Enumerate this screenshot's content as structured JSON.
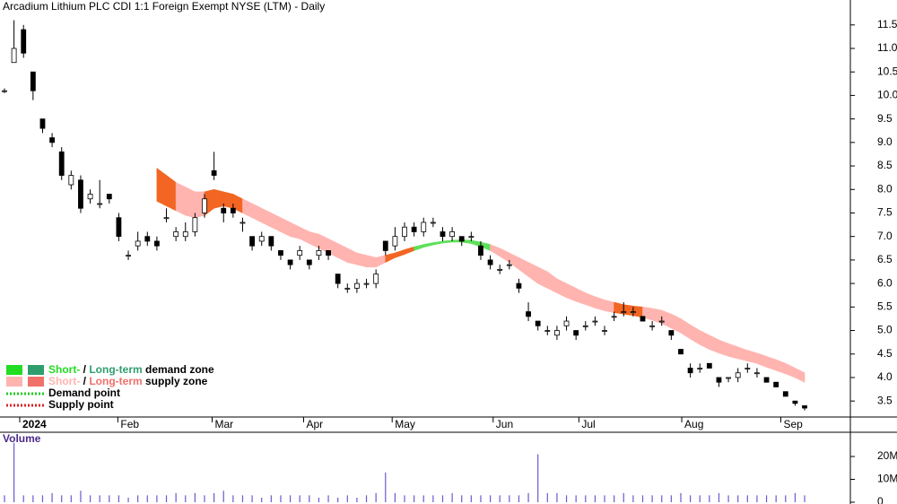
{
  "chart_data": {
    "type": "candlestick",
    "title": "Arcadium Lithium PLC CDI 1:1 Foreign Exempt NYSE (LTM) - Daily",
    "ylim": [
      3.16,
      12.03
    ],
    "yticks": [
      3.5,
      {
        "value": 4,
        "label": "4.0"
      },
      4.5,
      {
        "value": 5,
        "label": "5.0"
      },
      5.5,
      {
        "value": 6,
        "label": "6.0"
      },
      6.5,
      {
        "value": 7,
        "label": "7.0"
      },
      7.5,
      {
        "value": 8,
        "label": "8.0"
      },
      8.5,
      {
        "value": 9,
        "label": "9.0"
      },
      9.5,
      {
        "value": 10,
        "label": "10.0"
      },
      10.5,
      {
        "value": 11,
        "label": "11.0"
      },
      11.5
    ],
    "xlim": [
      -0.47,
      88.8
    ],
    "xticks": [
      {
        "value": 1.6,
        "label": "2024"
      },
      {
        "value": 11.9,
        "label": "Feb"
      },
      {
        "value": 21.8,
        "label": "Mar"
      },
      {
        "value": 31.4,
        "label": "Apr"
      },
      {
        "value": 40.7,
        "label": "May"
      },
      {
        "value": 51.3,
        "label": "Jun"
      },
      {
        "value": 60.3,
        "label": "Jul"
      },
      {
        "value": 71.1,
        "label": "Aug"
      },
      {
        "value": 81.5,
        "label": "Sep"
      }
    ],
    "ohlc": [
      [
        10.1,
        10.15,
        10.05,
        10.1
      ],
      [
        10.7,
        11.6,
        10.7,
        11.0
      ],
      [
        11.4,
        11.5,
        10.8,
        10.9
      ],
      [
        10.5,
        10.5,
        9.9,
        10.1
      ],
      [
        9.5,
        9.5,
        9.2,
        9.3
      ],
      [
        9.1,
        9.2,
        8.9,
        9.0
      ],
      [
        8.8,
        8.9,
        8.2,
        8.3
      ],
      [
        8.1,
        8.4,
        8.0,
        8.3
      ],
      [
        8.2,
        8.3,
        7.5,
        7.6
      ],
      [
        7.8,
        8.0,
        7.7,
        7.9
      ],
      [
        7.7,
        8.2,
        7.6,
        7.7
      ],
      [
        7.9,
        7.9,
        7.7,
        7.8
      ],
      [
        7.4,
        7.5,
        6.9,
        7.0
      ],
      [
        6.6,
        6.7,
        6.5,
        6.6
      ],
      [
        6.8,
        7.1,
        6.7,
        6.9
      ],
      [
        7.0,
        7.1,
        6.8,
        6.9
      ],
      [
        6.9,
        7.0,
        6.7,
        6.8
      ],
      [
        7.4,
        7.6,
        7.3,
        7.4
      ],
      [
        7.0,
        7.2,
        6.9,
        7.1
      ],
      [
        7.0,
        7.3,
        6.9,
        7.1
      ],
      [
        7.1,
        7.5,
        7.0,
        7.4
      ],
      [
        7.5,
        7.9,
        7.4,
        7.8
      ],
      [
        8.4,
        8.8,
        8.2,
        8.3
      ],
      [
        7.6,
        7.7,
        7.3,
        7.5
      ],
      [
        7.6,
        7.7,
        7.4,
        7.5
      ],
      [
        7.3,
        7.4,
        7.1,
        7.3
      ],
      [
        7.0,
        7.0,
        6.7,
        6.8
      ],
      [
        6.9,
        7.1,
        6.8,
        7.0
      ],
      [
        7.0,
        7.0,
        6.7,
        6.8
      ],
      [
        6.7,
        6.7,
        6.5,
        6.6
      ],
      [
        6.5,
        6.5,
        6.3,
        6.4
      ],
      [
        6.6,
        6.8,
        6.5,
        6.7
      ],
      [
        6.5,
        6.5,
        6.3,
        6.4
      ],
      [
        6.6,
        6.8,
        6.5,
        6.7
      ],
      [
        6.7,
        6.7,
        6.5,
        6.6
      ],
      [
        6.2,
        6.2,
        5.9,
        6.0
      ],
      [
        5.9,
        6.0,
        5.8,
        5.9
      ],
      [
        5.9,
        6.1,
        5.8,
        6.0
      ],
      [
        6.0,
        6.1,
        5.9,
        6.0
      ],
      [
        6.0,
        6.3,
        5.9,
        6.2
      ],
      [
        6.9,
        6.9,
        6.6,
        6.7
      ],
      [
        6.8,
        7.2,
        6.7,
        7.0
      ],
      [
        7.0,
        7.3,
        6.9,
        7.2
      ],
      [
        7.2,
        7.3,
        7.0,
        7.1
      ],
      [
        7.1,
        7.4,
        7.0,
        7.3
      ],
      [
        7.3,
        7.4,
        7.2,
        7.3
      ],
      [
        7.1,
        7.2,
        6.9,
        7.0
      ],
      [
        7.0,
        7.2,
        6.9,
        7.1
      ],
      [
        7.0,
        7.0,
        6.8,
        6.9
      ],
      [
        7.0,
        7.1,
        6.9,
        7.0
      ],
      [
        6.8,
        6.9,
        6.5,
        6.6
      ],
      [
        6.5,
        6.6,
        6.3,
        6.4
      ],
      [
        6.3,
        6.4,
        6.2,
        6.3
      ],
      [
        6.4,
        6.5,
        6.3,
        6.4
      ],
      [
        6.0,
        6.1,
        5.8,
        5.9
      ],
      [
        5.4,
        5.6,
        5.2,
        5.3
      ],
      [
        5.2,
        5.2,
        5.0,
        5.1
      ],
      [
        5.0,
        5.1,
        4.9,
        5.0
      ],
      [
        4.9,
        5.1,
        4.8,
        5.0
      ],
      [
        5.1,
        5.3,
        5.0,
        5.2
      ],
      [
        5.0,
        5.0,
        4.8,
        4.9
      ],
      [
        5.1,
        5.2,
        5.0,
        5.1
      ],
      [
        5.2,
        5.3,
        5.1,
        5.2
      ],
      [
        5.0,
        5.1,
        4.9,
        5.0
      ],
      [
        5.3,
        5.4,
        5.2,
        5.3
      ],
      [
        5.4,
        5.6,
        5.3,
        5.4
      ],
      [
        5.4,
        5.5,
        5.3,
        5.4
      ],
      [
        5.3,
        5.3,
        5.2,
        5.2
      ],
      [
        5.1,
        5.2,
        5.0,
        5.1
      ],
      [
        5.2,
        5.3,
        5.1,
        5.2
      ],
      [
        5.0,
        5.0,
        4.8,
        4.9
      ],
      [
        4.6,
        4.6,
        4.5,
        4.5
      ],
      [
        4.2,
        4.3,
        4.0,
        4.1
      ],
      [
        4.2,
        4.3,
        4.1,
        4.2
      ],
      [
        4.3,
        4.3,
        4.2,
        4.2
      ],
      [
        4.0,
        4.0,
        3.8,
        3.9
      ],
      [
        4.0,
        4.0,
        3.9,
        4.0
      ],
      [
        4.0,
        4.2,
        3.9,
        4.1
      ],
      [
        4.2,
        4.3,
        4.1,
        4.2
      ],
      [
        4.1,
        4.2,
        4.0,
        4.1
      ],
      [
        4.0,
        4.0,
        3.9,
        3.9
      ],
      [
        3.9,
        3.9,
        3.8,
        3.8
      ],
      [
        3.7,
        3.7,
        3.6,
        3.6
      ],
      [
        3.5,
        3.5,
        3.4,
        3.45
      ],
      [
        3.4,
        3.4,
        3.3,
        3.35
      ]
    ],
    "band": {
      "upper": [
        null,
        null,
        null,
        null,
        null,
        null,
        null,
        null,
        null,
        null,
        null,
        null,
        null,
        null,
        null,
        null,
        8.45,
        8.3,
        8.15,
        8.05,
        7.95,
        7.95,
        8.0,
        7.95,
        7.9,
        7.8,
        7.7,
        7.6,
        7.5,
        7.4,
        7.3,
        7.2,
        7.1,
        7.05,
        6.95,
        6.85,
        6.75,
        6.65,
        6.6,
        6.55,
        6.6,
        6.65,
        6.72,
        6.78,
        6.83,
        6.87,
        6.9,
        6.92,
        6.93,
        6.92,
        6.88,
        6.83,
        6.75,
        6.65,
        6.55,
        6.45,
        6.35,
        6.25,
        6.1,
        6.0,
        5.9,
        5.8,
        5.72,
        5.65,
        5.6,
        5.55,
        5.52,
        5.5,
        5.47,
        5.43,
        5.35,
        5.25,
        5.12,
        5.0,
        4.9,
        4.8,
        4.72,
        4.65,
        4.58,
        4.52,
        4.45,
        4.38,
        4.3,
        4.2,
        4.1
      ],
      "lower": [
        null,
        null,
        null,
        null,
        null,
        null,
        null,
        null,
        null,
        null,
        null,
        null,
        null,
        null,
        null,
        null,
        7.75,
        7.65,
        7.55,
        7.45,
        7.4,
        7.45,
        7.6,
        7.65,
        7.6,
        7.5,
        7.4,
        7.3,
        7.2,
        7.1,
        7.0,
        6.95,
        6.85,
        6.75,
        6.65,
        6.55,
        6.45,
        6.4,
        6.35,
        6.35,
        6.45,
        6.55,
        6.62,
        6.7,
        6.77,
        6.82,
        6.86,
        6.88,
        6.88,
        6.85,
        6.78,
        6.7,
        6.58,
        6.45,
        6.3,
        6.15,
        6.0,
        5.9,
        5.8,
        5.7,
        5.62,
        5.55,
        5.48,
        5.42,
        5.38,
        5.35,
        5.32,
        5.28,
        5.22,
        5.15,
        5.05,
        4.95,
        4.82,
        4.7,
        4.6,
        4.52,
        4.45,
        4.4,
        4.35,
        4.3,
        4.22,
        4.15,
        4.08,
        4.0,
        3.9
      ],
      "colors": [
        null,
        null,
        null,
        null,
        null,
        null,
        null,
        null,
        null,
        null,
        null,
        null,
        null,
        null,
        null,
        null,
        "#f26522",
        "#f26522",
        "#ffb4b0",
        "#ffb4b0",
        "#ffb4b0",
        "#f26522",
        "#f26522",
        "#f26522",
        "#f26522",
        "#ffb4b0",
        "#ffb4b0",
        "#ffb4b0",
        "#ffb4b0",
        "#ffb4b0",
        "#ffb4b0",
        "#ffb4b0",
        "#ffb4b0",
        "#ffb4b0",
        "#ffb4b0",
        "#ffb4b0",
        "#ffb4b0",
        "#ffb4b0",
        "#ffb4b0",
        "#ffb4b0",
        "#f26522",
        "#f26522",
        "#f26522",
        "#5ee05a",
        "#5ee05a",
        "#5ee05a",
        "#5ee05a",
        "#5ee05a",
        "#5ee05a",
        "#5ee05a",
        "#5ee05a",
        "#ffb4b0",
        "#ffb4b0",
        "#ffb4b0",
        "#ffb4b0",
        "#ffb4b0",
        "#ffb4b0",
        "#ffb4b0",
        "#ffb4b0",
        "#ffb4b0",
        "#ffb4b0",
        "#ffb4b0",
        "#ffb4b0",
        "#ffb4b0",
        "#f26522",
        "#f26522",
        "#f26522",
        "#ffb4b0",
        "#ffb4b0",
        "#ffb4b0",
        "#ffb4b0",
        "#ffb4b0",
        "#ffb4b0",
        "#ffb4b0",
        "#ffb4b0",
        "#ffb4b0",
        "#ffb4b0",
        "#ffb4b0",
        "#ffb4b0",
        "#ffb4b0",
        "#ffb4b0",
        "#ffb4b0",
        "#ffb4b0",
        "#ffb4b0",
        null
      ]
    },
    "volume": {
      "label": "Volume",
      "color": "#6a5acd",
      "ylim": [
        0,
        30.6
      ],
      "yticks": [
        0,
        {
          "value": 10,
          "label": "10M"
        },
        {
          "value": 20,
          "label": "20M"
        }
      ],
      "values": [
        3,
        26,
        3,
        3,
        3,
        4,
        3,
        3,
        5,
        3,
        3,
        3,
        3,
        2,
        3,
        3,
        3,
        3,
        4,
        3,
        4,
        3,
        4,
        5,
        3,
        3,
        3,
        2,
        3,
        3,
        3,
        3,
        3,
        2,
        3,
        2,
        3,
        2,
        3,
        4,
        13,
        4,
        3,
        3,
        3,
        3,
        3,
        4,
        3,
        3,
        3,
        3,
        3,
        3,
        3,
        4,
        21,
        4,
        4,
        3,
        3,
        3,
        3,
        3,
        3,
        4,
        3,
        3,
        3,
        3,
        3,
        4,
        3,
        3,
        3,
        4,
        3,
        3,
        3,
        3,
        3,
        3,
        3,
        4,
        3
      ]
    },
    "legend": [
      {
        "parts": [
          "Short-",
          " / ",
          "Long-term",
          " demand zone"
        ],
        "colors": [
          "#22dd22",
          "#000",
          "#2e9e6e",
          "#000"
        ]
      },
      {
        "parts": [
          "Short-",
          " / ",
          "Long-term",
          " supply zone"
        ],
        "colors": [
          "#ffb4b0",
          "#000",
          "#f0706a",
          "#000"
        ]
      },
      {
        "parts": [
          "Demand point"
        ],
        "colors": [
          "#22cc22"
        ]
      },
      {
        "parts": [
          "Supply point"
        ],
        "colors": [
          "#dd2222"
        ]
      }
    ]
  }
}
